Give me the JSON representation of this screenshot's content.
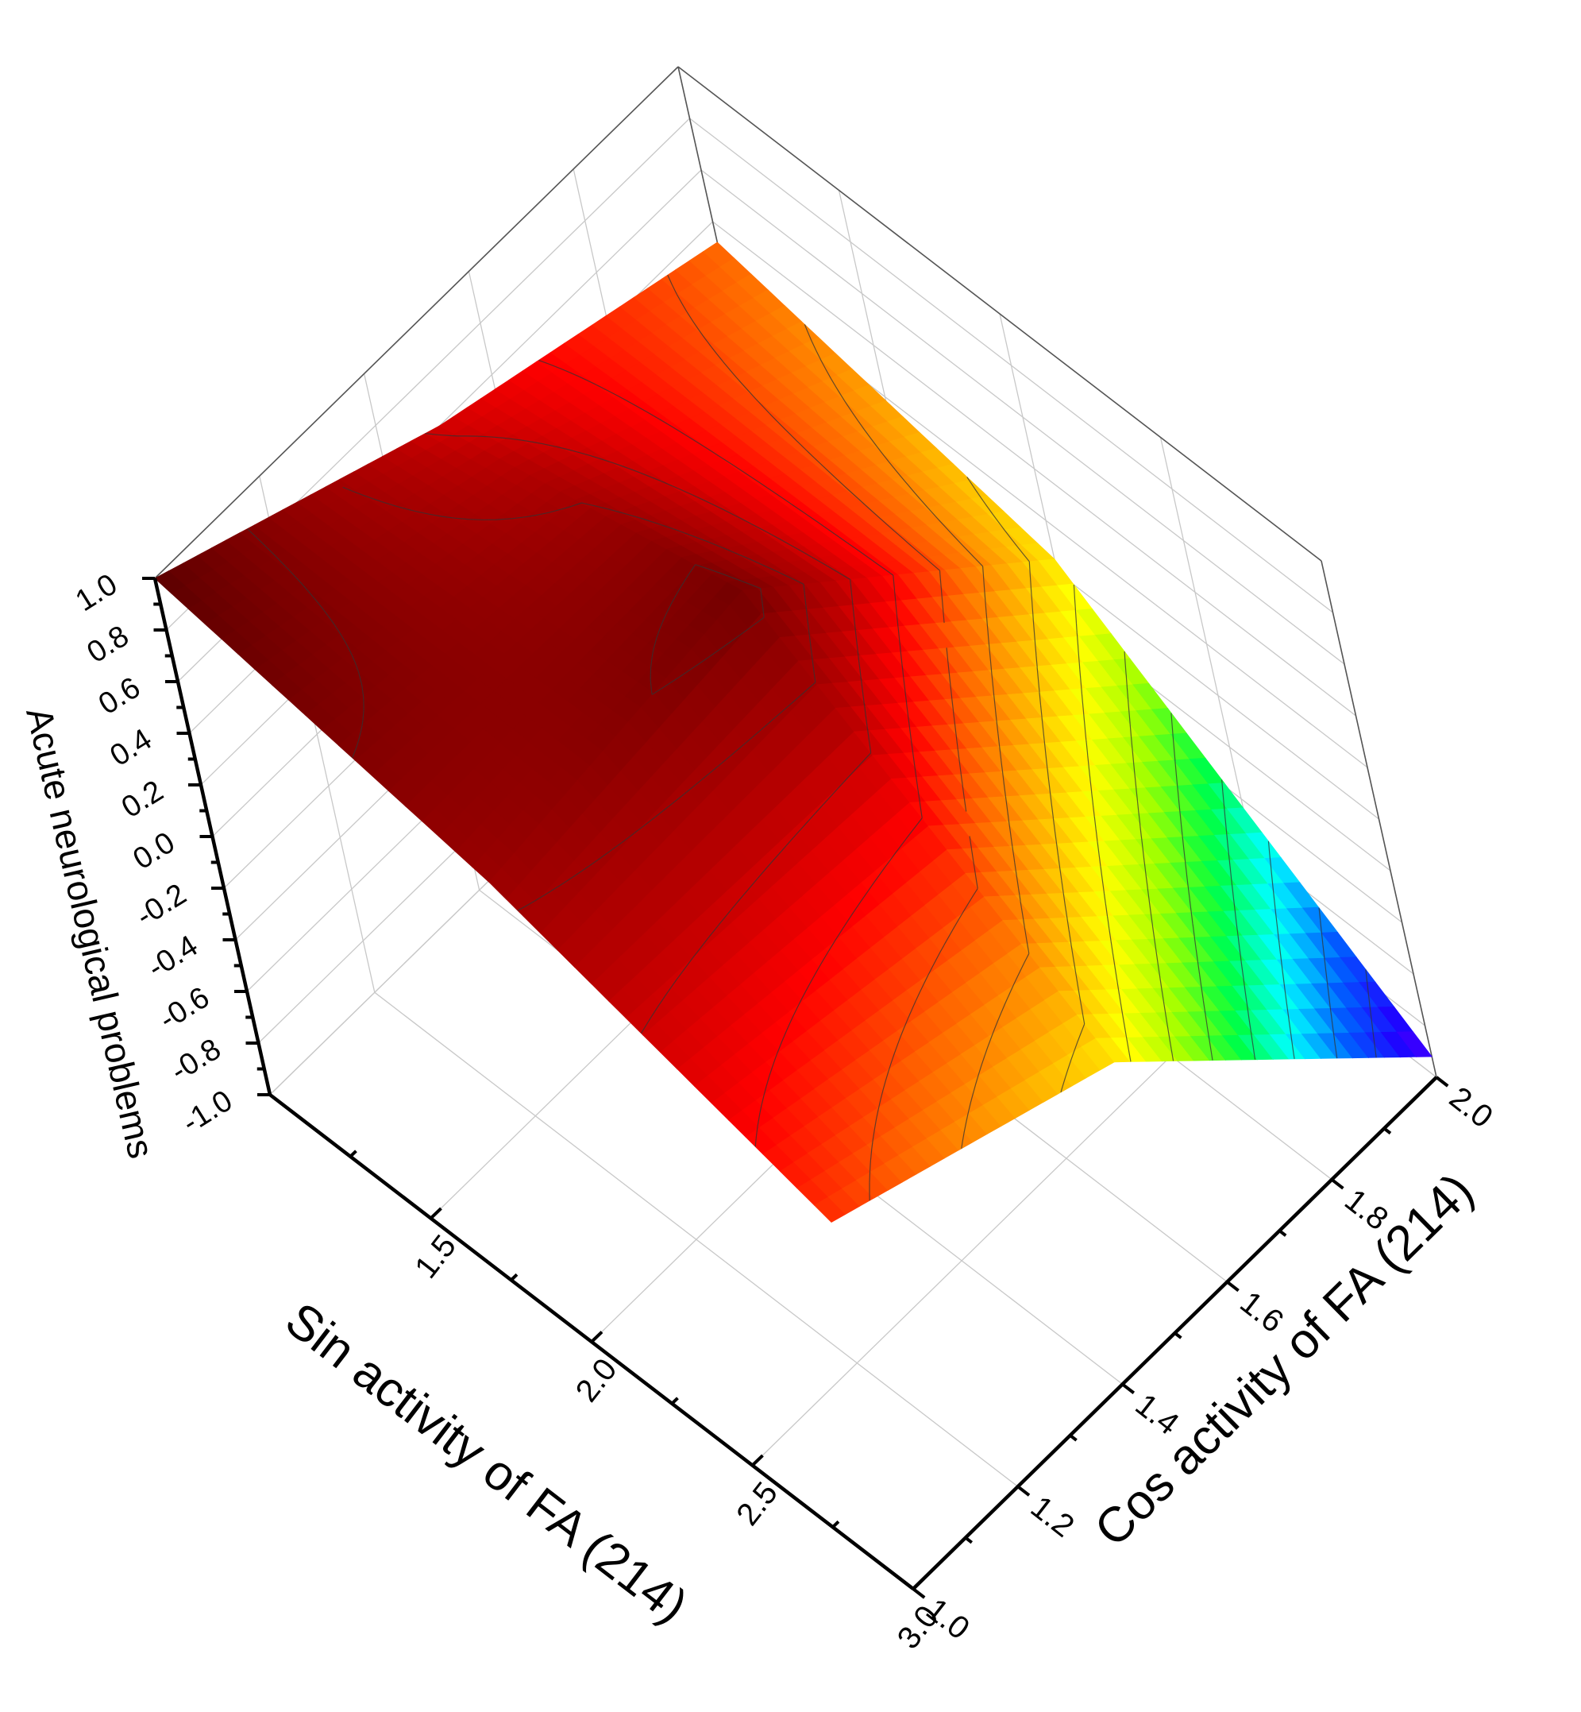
{
  "chart_data": {
    "type": "surface3d",
    "title": "",
    "xlabel": "Sin activity of FA (214)",
    "ylabel": "Cos activity of FA (214)",
    "zlabel": "Acute neurological problems",
    "xlim": [
      1.0,
      3.0
    ],
    "ylim": [
      1.0,
      2.0
    ],
    "zlim": [
      -1.0,
      1.0
    ],
    "x_ticks": [
      "1.5",
      "2.0",
      "2.5",
      "3.0"
    ],
    "y_ticks": [
      "1.0",
      "1.2",
      "1.4",
      "1.6",
      "1.8",
      "2.0"
    ],
    "z_ticks": [
      "-1.0",
      "-0.8",
      "-0.6",
      "-0.4",
      "-0.2",
      "0.0",
      "0.2",
      "0.4",
      "0.6",
      "0.8",
      "1.0"
    ],
    "grid": true,
    "colormap": [
      "#5c0000",
      "#8c0000",
      "#b80000",
      "#ff0000",
      "#ff6000",
      "#ffb000",
      "#ffff00",
      "#a0ff00",
      "#00ff40",
      "#00ffff",
      "#0060ff",
      "#2000ff",
      "#8000ff"
    ],
    "x": [
      1.0,
      2.0,
      3.0
    ],
    "y": [
      1.0,
      1.5,
      2.0
    ],
    "z": [
      [
        1.0,
        0.6,
        0.32
      ],
      [
        0.78,
        0.92,
        0.05
      ],
      [
        0.42,
        0.05,
        -0.92
      ]
    ],
    "contour_levels": [
      0.87,
      0.75,
      0.62,
      0.5,
      0.37,
      0.25,
      0.12,
      0.0,
      -0.13,
      -0.25,
      -0.38,
      -0.5,
      -0.63,
      -0.75
    ]
  }
}
